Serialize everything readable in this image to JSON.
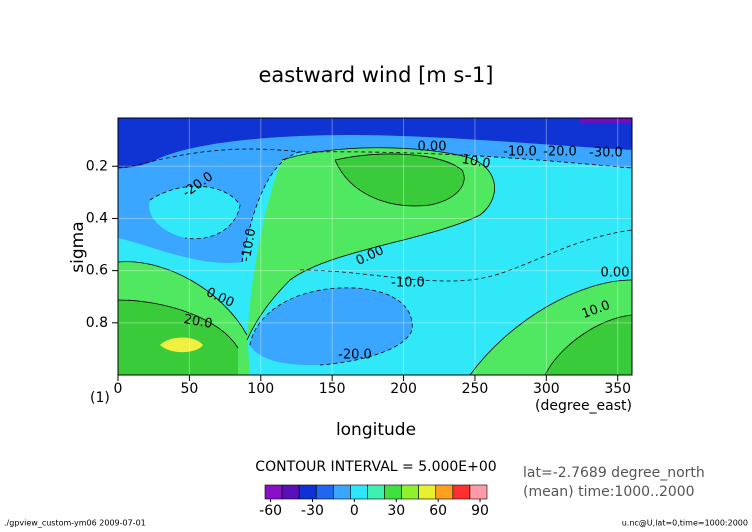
{
  "chart_data": {
    "type": "contour",
    "title": "eastward wind [m s-1]",
    "x_label": "longitude",
    "x_unit": "(degree_east)",
    "y_label": "sigma",
    "panel_label": "(1)",
    "xlim": [
      0,
      360
    ],
    "xticks": [
      0,
      50,
      100,
      150,
      200,
      250,
      300,
      350
    ],
    "ylim": [
      1.0,
      0.015
    ],
    "yticks": [
      0.2,
      0.4,
      0.6,
      0.8
    ],
    "grid": true,
    "contour_labels": [
      "0.00",
      "10.0",
      "-10.0",
      "-20.0",
      "-30.0",
      "-20.0",
      "-10.0",
      "0.00",
      "-10.0",
      "0.00",
      "20.0",
      "-20.0",
      "0.00",
      "10.0"
    ],
    "contour_interval": "CONTOUR INTERVAL = 5.000E+00",
    "info": [
      "lat=-2.7689 degree_north",
      "(mean) time:1000..2000"
    ],
    "colorbar": {
      "lim": [
        -64,
        95
      ],
      "ticks": [
        -60,
        -30,
        0,
        30,
        60,
        90
      ],
      "colors": [
        "#8a10c8",
        "#5a10b8",
        "#1030d8",
        "#2066f0",
        "#3aa6ff",
        "#30e6ff",
        "#40f0b0",
        "#40e040",
        "#90f030",
        "#e8f030",
        "#ffa020",
        "#ff3030",
        "#ff9aa8"
      ]
    },
    "footer_left": "./gpview_custom-ym06  2009-07-01",
    "footer_right": "u.nc@U,lat=0,time=1000:2000"
  }
}
